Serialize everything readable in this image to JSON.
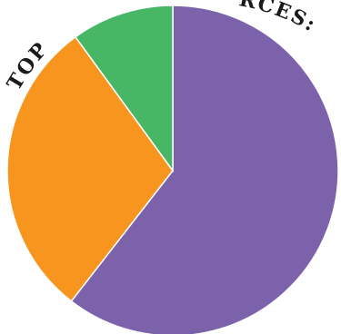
{
  "chart_data": {
    "type": "pie",
    "title_fragments": [
      "TOP",
      "RCES:"
    ],
    "categories": [
      "",
      "",
      ""
    ],
    "values": [
      60.5,
      29.5,
      10.0
    ],
    "colors": [
      "#7b62ab",
      "#f7951f",
      "#47b665"
    ],
    "outline_color": "#ffffff"
  }
}
